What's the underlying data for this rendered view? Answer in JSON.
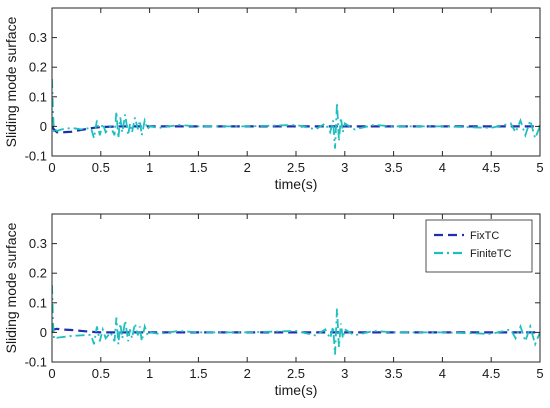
{
  "chart_data": [
    {
      "type": "line",
      "title": "",
      "xlabel": "time(s)",
      "ylabel": "Sliding mode surface",
      "xlim": [
        0,
        5
      ],
      "ylim": [
        -0.1,
        0.4
      ],
      "xticks": [
        0,
        0.5,
        1,
        1.5,
        2,
        2.5,
        3,
        3.5,
        4,
        4.5,
        5
      ],
      "xtick_labels": [
        "0",
        "0.5",
        "1",
        "1.5",
        "2",
        "2.5",
        "3",
        "3.5",
        "4",
        "4.5",
        "5"
      ],
      "yticks": [
        -0.1,
        0,
        0.1,
        0.2,
        0.3
      ],
      "ytick_labels": [
        "-0.1",
        "0",
        "0.1",
        "0.2",
        "0.3"
      ],
      "grid": false,
      "legend": null,
      "series": [
        {
          "color": "#1f2fb0",
          "style": "dashed",
          "x": [
            0,
            0.02,
            0.05,
            0.1,
            0.2,
            0.3,
            0.4,
            0.5,
            0.7,
            1.0,
            1.5,
            2.0,
            3.0,
            4.0,
            5.0
          ],
          "y": [
            0.0,
            -0.01,
            -0.02,
            -0.02,
            -0.018,
            -0.012,
            -0.006,
            -0.002,
            0.0,
            0.0,
            0.0,
            0.0,
            0.0,
            0.0,
            0.0
          ]
        },
        {
          "color": "#1fbfbf",
          "style": "dashdot",
          "x": [
            0,
            0.01,
            0.02,
            0.03,
            0.05,
            0.1,
            0.2,
            0.3,
            0.4,
            0.43,
            0.46,
            0.49,
            0.52,
            0.55,
            0.6,
            0.64,
            0.66,
            0.68,
            0.7,
            0.72,
            0.75,
            0.78,
            0.8,
            0.82,
            0.85,
            0.88,
            0.9,
            0.92,
            0.95,
            0.98,
            1.0,
            1.1,
            1.3,
            1.5,
            2.0,
            2.5,
            2.7,
            2.8,
            2.85,
            2.88,
            2.9,
            2.92,
            2.94,
            2.96,
            2.98,
            3.0,
            3.1,
            3.3,
            3.5,
            4.0,
            4.5,
            4.7,
            4.75,
            4.8,
            4.85,
            4.9,
            4.95,
            5.0
          ],
          "y": [
            0.16,
            0.05,
            -0.02,
            -0.01,
            -0.015,
            -0.01,
            -0.005,
            -0.01,
            -0.005,
            -0.04,
            0.02,
            -0.03,
            0.01,
            -0.02,
            0.0,
            -0.03,
            0.05,
            -0.04,
            0.03,
            -0.02,
            0.04,
            -0.03,
            0.01,
            -0.02,
            0.03,
            -0.01,
            0.02,
            -0.03,
            0.02,
            -0.01,
            0.0,
            -0.005,
            0.005,
            0.0,
            0.0,
            0.005,
            -0.01,
            0.01,
            -0.02,
            0.02,
            -0.075,
            0.08,
            -0.05,
            0.03,
            -0.02,
            0.01,
            -0.01,
            0.005,
            0.0,
            0.0,
            -0.005,
            0.01,
            -0.02,
            0.02,
            -0.03,
            0.02,
            -0.04,
            0.0
          ]
        }
      ]
    },
    {
      "type": "line",
      "title": "",
      "xlabel": "time(s)",
      "ylabel": "Sliding mode surface",
      "xlim": [
        0,
        5
      ],
      "ylim": [
        -0.1,
        0.4
      ],
      "xticks": [
        0,
        0.5,
        1,
        1.5,
        2,
        2.5,
        3,
        3.5,
        4,
        4.5,
        5
      ],
      "xtick_labels": [
        "0",
        "0.5",
        "1",
        "1.5",
        "2",
        "2.5",
        "3",
        "3.5",
        "4",
        "4.5",
        "5"
      ],
      "yticks": [
        -0.1,
        0,
        0.1,
        0.2,
        0.3
      ],
      "ytick_labels": [
        "-0.1",
        "0",
        "0.1",
        "0.2",
        "0.3"
      ],
      "grid": false,
      "legend": "top-right",
      "series": [
        {
          "name": "FixTC",
          "color": "#1f2fb0",
          "style": "dashed",
          "x": [
            0,
            0.02,
            0.05,
            0.1,
            0.2,
            0.3,
            0.4,
            0.5,
            0.7,
            1.0,
            1.5,
            2.0,
            3.0,
            4.0,
            5.0
          ],
          "y": [
            0.0,
            0.01,
            0.012,
            0.01,
            0.008,
            0.005,
            0.002,
            0.0,
            0.0,
            0.0,
            0.0,
            0.0,
            0.0,
            0.0,
            0.0
          ]
        },
        {
          "name": "FiniteTC",
          "color": "#1fbfbf",
          "style": "dashdot",
          "x": [
            0,
            0.01,
            0.02,
            0.03,
            0.05,
            0.1,
            0.2,
            0.3,
            0.4,
            0.43,
            0.46,
            0.49,
            0.52,
            0.55,
            0.6,
            0.64,
            0.66,
            0.68,
            0.7,
            0.72,
            0.75,
            0.78,
            0.8,
            0.82,
            0.85,
            0.88,
            0.9,
            0.92,
            0.95,
            0.98,
            1.0,
            1.1,
            1.3,
            1.5,
            2.0,
            2.5,
            2.7,
            2.8,
            2.85,
            2.88,
            2.9,
            2.92,
            2.94,
            2.96,
            2.98,
            3.0,
            3.1,
            3.3,
            3.5,
            4.0,
            4.5,
            4.7,
            4.75,
            4.8,
            4.85,
            4.9,
            4.95,
            5.0
          ],
          "y": [
            0.16,
            0.04,
            -0.02,
            -0.015,
            -0.018,
            -0.016,
            -0.012,
            -0.01,
            -0.008,
            -0.04,
            0.02,
            -0.03,
            0.01,
            -0.02,
            0.0,
            -0.03,
            0.05,
            -0.04,
            0.03,
            -0.02,
            0.04,
            -0.03,
            0.01,
            -0.02,
            0.03,
            -0.01,
            0.02,
            -0.03,
            0.02,
            -0.01,
            0.0,
            -0.005,
            0.005,
            0.0,
            0.0,
            0.005,
            -0.01,
            0.01,
            -0.02,
            0.02,
            -0.075,
            0.08,
            -0.05,
            0.03,
            -0.02,
            0.01,
            -0.01,
            0.005,
            0.0,
            0.0,
            -0.005,
            0.01,
            -0.02,
            0.02,
            -0.03,
            0.02,
            -0.04,
            0.0
          ]
        }
      ]
    }
  ]
}
